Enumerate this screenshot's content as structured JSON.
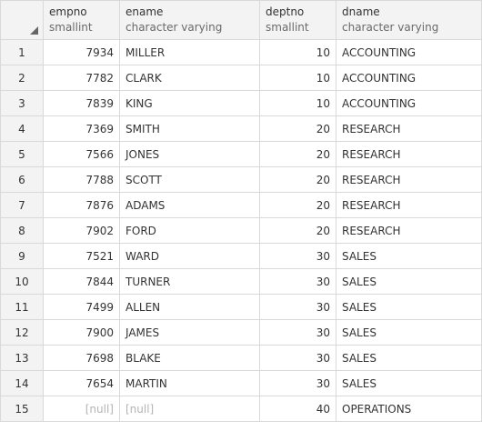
{
  "columns": [
    {
      "name": "empno",
      "type": "smallint"
    },
    {
      "name": "ename",
      "type": "character varying"
    },
    {
      "name": "deptno",
      "type": "smallint"
    },
    {
      "name": "dname",
      "type": "character varying"
    }
  ],
  "null_label": "[null]",
  "rows": [
    {
      "n": "1",
      "empno": "7934",
      "ename": "MILLER",
      "deptno": "10",
      "dname": "ACCOUNTING"
    },
    {
      "n": "2",
      "empno": "7782",
      "ename": "CLARK",
      "deptno": "10",
      "dname": "ACCOUNTING"
    },
    {
      "n": "3",
      "empno": "7839",
      "ename": "KING",
      "deptno": "10",
      "dname": "ACCOUNTING"
    },
    {
      "n": "4",
      "empno": "7369",
      "ename": "SMITH",
      "deptno": "20",
      "dname": "RESEARCH"
    },
    {
      "n": "5",
      "empno": "7566",
      "ename": "JONES",
      "deptno": "20",
      "dname": "RESEARCH"
    },
    {
      "n": "6",
      "empno": "7788",
      "ename": "SCOTT",
      "deptno": "20",
      "dname": "RESEARCH"
    },
    {
      "n": "7",
      "empno": "7876",
      "ename": "ADAMS",
      "deptno": "20",
      "dname": "RESEARCH"
    },
    {
      "n": "8",
      "empno": "7902",
      "ename": "FORD",
      "deptno": "20",
      "dname": "RESEARCH"
    },
    {
      "n": "9",
      "empno": "7521",
      "ename": "WARD",
      "deptno": "30",
      "dname": "SALES"
    },
    {
      "n": "10",
      "empno": "7844",
      "ename": "TURNER",
      "deptno": "30",
      "dname": "SALES"
    },
    {
      "n": "11",
      "empno": "7499",
      "ename": "ALLEN",
      "deptno": "30",
      "dname": "SALES"
    },
    {
      "n": "12",
      "empno": "7900",
      "ename": "JAMES",
      "deptno": "30",
      "dname": "SALES"
    },
    {
      "n": "13",
      "empno": "7698",
      "ename": "BLAKE",
      "deptno": "30",
      "dname": "SALES"
    },
    {
      "n": "14",
      "empno": "7654",
      "ename": "MARTIN",
      "deptno": "30",
      "dname": "SALES"
    },
    {
      "n": "15",
      "empno": null,
      "ename": null,
      "deptno": "40",
      "dname": "OPERATIONS"
    }
  ]
}
